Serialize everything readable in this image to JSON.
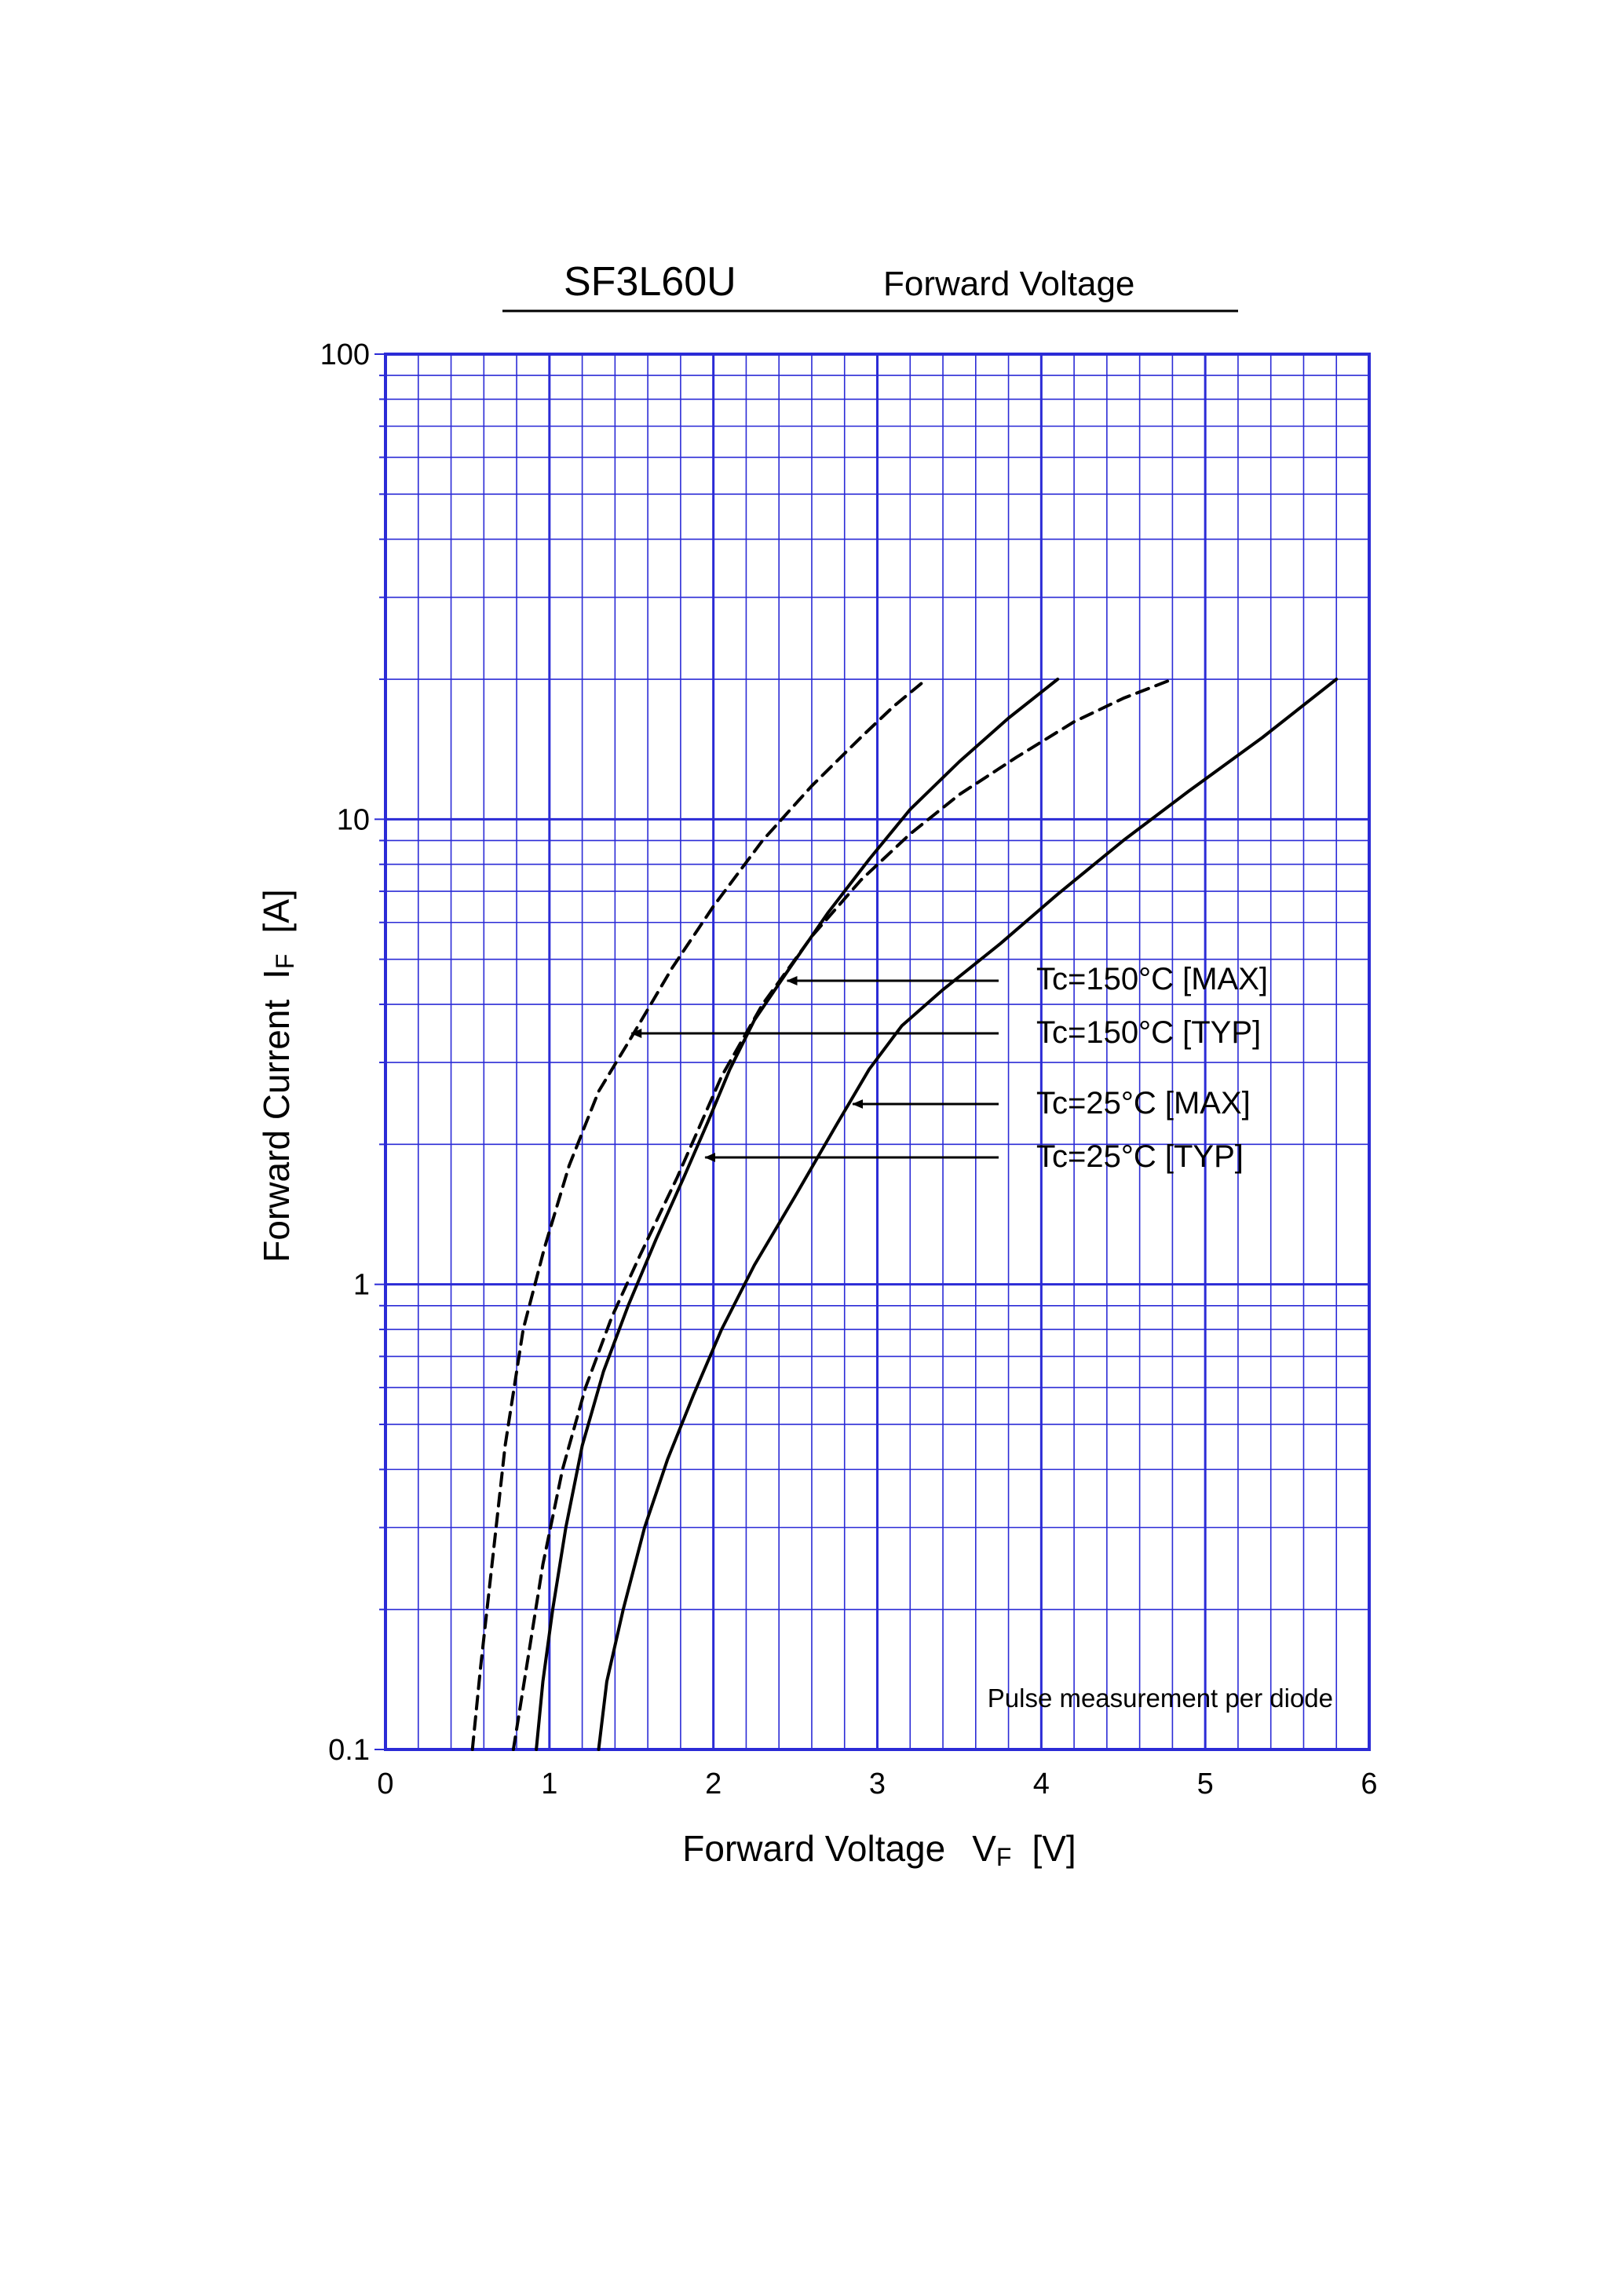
{
  "chart_data": {
    "type": "line",
    "title": "SF3L60U",
    "subtitle": "Forward  Voltage",
    "xlabel": "Forward Voltage",
    "xlabel_symbol": "V",
    "xlabel_sub": "F",
    "xlabel_unit": "[V]",
    "ylabel": "Forward Current",
    "ylabel_symbol": "I",
    "ylabel_sub": "F",
    "ylabel_unit": "[A]",
    "xlim": [
      0,
      6
    ],
    "ylim": [
      0.1,
      100
    ],
    "yscale": "log",
    "grid": true,
    "grid_color": "#2b2bd6",
    "line_color": "#000000",
    "xticks": [
      "0",
      "1",
      "2",
      "3",
      "4",
      "5",
      "6"
    ],
    "yticks": [
      "0.1",
      "1",
      "10",
      "100"
    ],
    "note": "Pulse  measurement  per  diode",
    "series": [
      {
        "name": "Tc=150°C [MAX]",
        "dashed": true,
        "pointer": [
          2.45,
          4.3
        ],
        "x": [
          0.78,
          0.86,
          0.96,
          1.08,
          1.22,
          1.38,
          1.55,
          1.78,
          2.05,
          2.3,
          2.6,
          2.9,
          3.2,
          3.5,
          3.85,
          4.2,
          4.5,
          4.8
        ],
        "y": [
          0.1,
          0.15,
          0.25,
          0.4,
          0.6,
          0.85,
          1.15,
          1.7,
          2.8,
          4.0,
          5.6,
          7.4,
          9.3,
          11.3,
          13.6,
          16.2,
          18.2,
          20
        ]
      },
      {
        "name": "Tc=150°C [TYP]",
        "dashed": true,
        "pointer": [
          1.5,
          3.4
        ],
        "x": [
          0.53,
          0.58,
          0.65,
          0.73,
          0.84,
          0.97,
          1.12,
          1.3,
          1.5,
          1.75,
          2.0,
          2.3,
          2.6,
          2.9,
          3.1,
          3.3
        ],
        "y": [
          0.1,
          0.15,
          0.25,
          0.45,
          0.8,
          1.2,
          1.8,
          2.6,
          3.4,
          4.8,
          6.5,
          9.0,
          11.8,
          15.0,
          17.5,
          20
        ]
      },
      {
        "name": "Tc=25°C [MAX]",
        "dashed": false,
        "pointer": [
          2.85,
          2.4
        ],
        "x": [
          1.3,
          1.35,
          1.45,
          1.58,
          1.72,
          1.88,
          2.05,
          2.25,
          2.5,
          2.75,
          2.95,
          3.15,
          3.4,
          3.75,
          4.1,
          4.5,
          4.9,
          5.35,
          5.8
        ],
        "y": [
          0.1,
          0.14,
          0.2,
          0.3,
          0.42,
          0.58,
          0.8,
          1.1,
          1.55,
          2.2,
          2.9,
          3.6,
          4.3,
          5.4,
          6.9,
          9.0,
          11.5,
          15.0,
          20
        ]
      },
      {
        "name": "Tc=25°C [TYP]",
        "dashed": false,
        "pointer": [
          1.95,
          1.9
        ],
        "x": [
          0.92,
          0.96,
          1.02,
          1.1,
          1.2,
          1.33,
          1.48,
          1.65,
          1.82,
          1.97,
          2.1,
          2.25,
          2.45,
          2.7,
          2.95,
          3.2,
          3.5,
          3.8,
          4.1
        ],
        "y": [
          0.1,
          0.14,
          0.2,
          0.3,
          0.45,
          0.65,
          0.9,
          1.25,
          1.7,
          2.25,
          2.9,
          3.7,
          4.7,
          6.3,
          8.2,
          10.5,
          13.3,
          16.5,
          20
        ]
      }
    ],
    "annotations": [
      {
        "text": "Tc=150°C [MAX]",
        "series": 0
      },
      {
        "text": "Tc=150°C [TYP]",
        "series": 1
      },
      {
        "text": "Tc=25°C [MAX]",
        "series": 2
      },
      {
        "text": "Tc=25°C [TYP]",
        "series": 3
      }
    ]
  }
}
